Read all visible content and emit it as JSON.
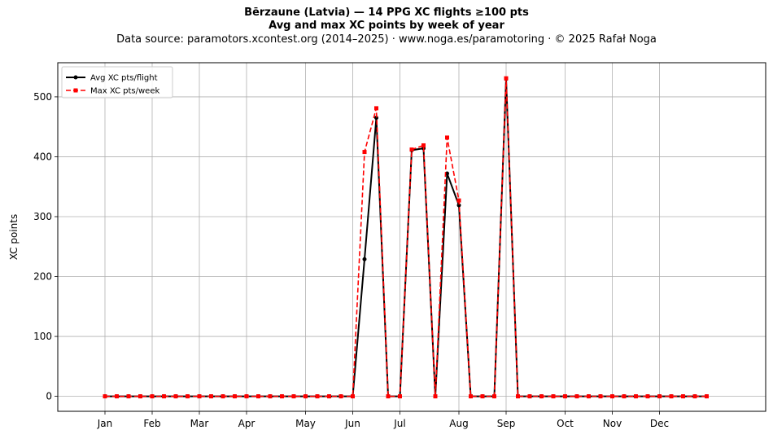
{
  "header": {
    "title": "Bērzaune (Latvia)  —  14 PPG XC flights ≥100 pts",
    "subtitle": "Avg and max XC points by week of year",
    "source": "Data source: paramotors.xcontest.org (2014–2025)  ·  www.noga.es/paramotoring  ·  © 2025 Rafał Noga"
  },
  "chart_data": {
    "type": "line",
    "title": "Bērzaune (Latvia)  —  14 PPG XC flights ≥100 pts",
    "subtitle": "Avg and max XC points by week of year",
    "xlabel": "",
    "ylabel": "XC points",
    "xlim": [
      -3,
      57
    ],
    "ylim": [
      -25,
      557
    ],
    "yticks": [
      0,
      100,
      200,
      300,
      400,
      500
    ],
    "xticks": [
      {
        "label": "Jan",
        "week": 1
      },
      {
        "label": "Feb",
        "week": 5
      },
      {
        "label": "Mar",
        "week": 9
      },
      {
        "label": "Apr",
        "week": 13
      },
      {
        "label": "May",
        "week": 18
      },
      {
        "label": "Jun",
        "week": 22
      },
      {
        "label": "Jul",
        "week": 26
      },
      {
        "label": "Aug",
        "week": 31
      },
      {
        "label": "Sep",
        "week": 35
      },
      {
        "label": "Oct",
        "week": 40
      },
      {
        "label": "Nov",
        "week": 44
      },
      {
        "label": "Dec",
        "week": 48
      }
    ],
    "grid": true,
    "legend_position": "top-left",
    "x": [
      1,
      2,
      3,
      4,
      5,
      6,
      7,
      8,
      9,
      10,
      11,
      12,
      13,
      14,
      15,
      16,
      17,
      18,
      19,
      20,
      21,
      22,
      23,
      24,
      25,
      26,
      27,
      28,
      29,
      30,
      31,
      32,
      33,
      34,
      35,
      36,
      37,
      38,
      39,
      40,
      41,
      42,
      43,
      44,
      45,
      46,
      47,
      48,
      49,
      50,
      51,
      52
    ],
    "series": [
      {
        "name": "Avg XC pts/flight",
        "color": "#000000",
        "style": "solid-circle",
        "values": [
          0,
          0,
          0,
          0,
          0,
          0,
          0,
          0,
          0,
          0,
          0,
          0,
          0,
          0,
          0,
          0,
          0,
          0,
          0,
          0,
          0,
          0,
          229,
          465,
          0,
          0,
          411,
          414,
          0,
          372,
          319,
          0,
          0,
          0,
          530,
          0,
          0,
          0,
          0,
          0,
          0,
          0,
          0,
          0,
          0,
          0,
          0,
          0,
          0,
          0,
          0,
          0
        ]
      },
      {
        "name": "Max XC pts/week",
        "color": "#ff0000",
        "style": "dashed-square",
        "values": [
          0,
          0,
          0,
          0,
          0,
          0,
          0,
          0,
          0,
          0,
          0,
          0,
          0,
          0,
          0,
          0,
          0,
          0,
          0,
          0,
          0,
          0,
          408,
          481,
          0,
          0,
          412,
          419,
          0,
          432,
          327,
          0,
          0,
          0,
          531,
          0,
          0,
          0,
          0,
          0,
          0,
          0,
          0,
          0,
          0,
          0,
          0,
          0,
          0,
          0,
          0,
          0
        ]
      }
    ]
  }
}
